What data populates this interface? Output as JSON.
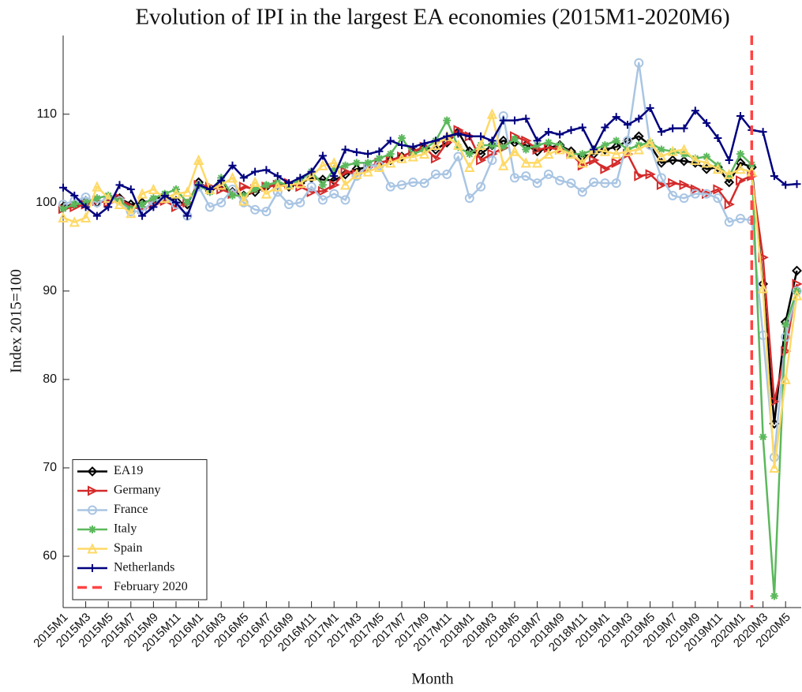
{
  "chart_data": {
    "type": "line",
    "title": "Evolution of IPI in the largest EA economies (2015M1-2020M6)",
    "x_label": "Month",
    "y_label": "Index 2015=100",
    "categories": [
      "2015M1",
      null,
      "2015M3",
      null,
      "2015M5",
      null,
      "2015M7",
      null,
      "2015M9",
      null,
      "2015M11",
      null,
      "2016M1",
      null,
      "2016M3",
      null,
      "2016M5",
      null,
      "2016M7",
      null,
      "2016M9",
      null,
      "2016M11",
      null,
      "2017M1",
      null,
      "2017M3",
      null,
      "2017M5",
      null,
      "2017M7",
      null,
      "2017M9",
      null,
      "2017M11",
      null,
      "2018M1",
      null,
      "2018M3",
      null,
      "2018M5",
      null,
      "2018M7",
      null,
      "2018M9",
      null,
      "2018M11",
      null,
      "2019M1",
      null,
      "2019M3",
      null,
      "2019M5",
      null,
      "2019M7",
      null,
      "2019M9",
      null,
      "2019M11",
      null,
      "2020M1",
      null,
      "2020M3",
      null,
      "2020M5",
      null
    ],
    "ylim": [
      54.2,
      118.9
    ],
    "yticks": [
      60,
      70,
      80,
      90,
      100,
      110
    ],
    "grid": false,
    "legend": "lower left",
    "series": [
      {
        "name": "EA19",
        "color": "#000000",
        "marker": "diamond",
        "values": [
          99.5,
          99.8,
          100.2,
          100.0,
          100.3,
          100.5,
          99.8,
          100.0,
          100.3,
          100.8,
          100.2,
          99.8,
          102.3,
          101.5,
          101.8,
          101.2,
          100.8,
          101.2,
          101.8,
          102.0,
          101.8,
          102.2,
          102.8,
          102.6,
          102.5,
          103.2,
          103.8,
          104.0,
          104.5,
          104.8,
          105.2,
          105.8,
          106.2,
          106.0,
          106.8,
          108.0,
          105.8,
          105.5,
          106.5,
          107.0,
          106.8,
          106.5,
          105.8,
          106.2,
          106.5,
          105.8,
          105.2,
          105.5,
          106.0,
          106.3,
          107.0,
          107.5,
          106.5,
          104.5,
          104.8,
          104.7,
          104.5,
          103.8,
          104.0,
          102.3,
          104.5,
          104.0,
          90.8,
          75.0,
          86.5,
          92.3
        ]
      },
      {
        "name": "Germany",
        "color": "#d42a2a",
        "marker": "triangle-right",
        "values": [
          99.3,
          99.5,
          99.8,
          100.2,
          100.0,
          100.5,
          99.5,
          99.3,
          99.8,
          100.2,
          99.5,
          100.0,
          102.0,
          101.8,
          101.5,
          101.0,
          101.8,
          101.5,
          101.8,
          102.0,
          102.2,
          101.8,
          101.2,
          101.3,
          102.0,
          103.5,
          103.2,
          104.0,
          104.5,
          104.8,
          105.2,
          105.8,
          106.3,
          105.0,
          106.8,
          108.2,
          107.5,
          104.8,
          105.5,
          106.2,
          107.5,
          107.0,
          106.0,
          106.2,
          106.0,
          105.5,
          104.2,
          104.8,
          103.8,
          104.5,
          105.5,
          103.0,
          103.2,
          102.0,
          102.2,
          102.0,
          101.5,
          101.0,
          101.5,
          99.8,
          102.5,
          103.0,
          93.8,
          77.5,
          83.2,
          90.8
        ]
      },
      {
        "name": "France",
        "color": "#a9c5e3",
        "marker": "circle",
        "values": [
          99.8,
          100.2,
          100.6,
          100.0,
          100.5,
          100.2,
          99.0,
          99.0,
          100.2,
          100.5,
          99.8,
          98.5,
          101.8,
          99.5,
          100.0,
          101.5,
          100.0,
          99.2,
          99.0,
          101.2,
          99.8,
          100.0,
          101.8,
          100.3,
          101.0,
          100.3,
          103.0,
          104.2,
          104.2,
          101.8,
          102.0,
          102.3,
          102.2,
          103.2,
          103.2,
          105.2,
          100.5,
          101.8,
          104.8,
          109.8,
          102.8,
          103.0,
          102.2,
          103.2,
          102.5,
          102.2,
          101.2,
          102.3,
          102.2,
          102.2,
          107.0,
          115.8,
          106.5,
          102.8,
          100.8,
          100.5,
          101.0,
          101.0,
          100.5,
          97.8,
          98.2,
          98.0,
          85.0,
          71.2,
          84.8,
          90.0
        ]
      },
      {
        "name": "Italy",
        "color": "#5cb85c",
        "marker": "asterisk",
        "values": [
          99.3,
          99.8,
          100.0,
          100.5,
          100.8,
          100.2,
          99.3,
          99.8,
          100.5,
          101.0,
          101.5,
          100.0,
          102.0,
          101.2,
          102.8,
          100.8,
          100.8,
          101.5,
          102.0,
          102.3,
          102.0,
          102.5,
          103.5,
          102.0,
          103.8,
          104.2,
          104.5,
          104.5,
          105.0,
          105.5,
          107.3,
          105.5,
          106.0,
          107.0,
          109.3,
          106.3,
          105.5,
          106.5,
          106.5,
          106.3,
          107.2,
          106.0,
          106.5,
          106.8,
          106.5,
          105.5,
          105.5,
          106.0,
          106.5,
          107.0,
          106.0,
          106.5,
          106.8,
          106.0,
          105.8,
          105.5,
          105.0,
          105.2,
          104.2,
          103.0,
          105.5,
          104.3,
          73.5,
          55.5,
          86.2,
          90.0
        ]
      },
      {
        "name": "Spain",
        "color": "#ffd966",
        "marker": "triangle-up",
        "values": [
          98.3,
          97.8,
          98.3,
          101.8,
          100.5,
          99.8,
          98.8,
          101.0,
          101.5,
          100.5,
          101.0,
          101.2,
          104.8,
          101.5,
          102.0,
          102.8,
          100.2,
          102.3,
          101.0,
          101.8,
          102.0,
          102.2,
          103.0,
          104.2,
          104.5,
          102.0,
          103.2,
          103.5,
          104.0,
          104.5,
          105.0,
          105.2,
          105.5,
          106.5,
          107.5,
          106.5,
          104.0,
          106.5,
          110.0,
          104.2,
          105.8,
          104.5,
          104.5,
          105.5,
          106.0,
          105.5,
          104.5,
          106.0,
          105.8,
          105.5,
          105.8,
          106.0,
          106.8,
          105.2,
          105.8,
          106.0,
          104.8,
          104.5,
          103.8,
          103.2,
          103.8,
          103.5,
          90.3,
          70.0,
          80.0,
          89.5
        ]
      },
      {
        "name": "Netherlands",
        "color": "#00007f",
        "marker": "plus",
        "values": [
          101.7,
          100.8,
          99.5,
          98.5,
          99.5,
          102.0,
          101.5,
          98.5,
          99.5,
          100.8,
          100.0,
          98.5,
          102.0,
          101.5,
          102.5,
          104.2,
          102.8,
          103.5,
          103.7,
          103.0,
          102.2,
          102.8,
          103.5,
          105.3,
          103.0,
          106.0,
          105.7,
          105.5,
          105.8,
          107.0,
          106.5,
          106.3,
          106.7,
          107.0,
          107.5,
          107.8,
          107.5,
          107.5,
          107.0,
          109.3,
          109.3,
          109.5,
          107.0,
          108.0,
          107.7,
          108.2,
          108.5,
          106.0,
          108.5,
          109.7,
          108.8,
          109.5,
          110.7,
          108.0,
          108.4,
          108.4,
          110.4,
          109.0,
          107.3,
          104.8,
          109.8,
          108.2,
          108.0,
          103.0,
          102.0,
          102.1
        ]
      }
    ],
    "vline": {
      "name": "February 2020",
      "color": "#ff4444",
      "index": 61
    }
  }
}
